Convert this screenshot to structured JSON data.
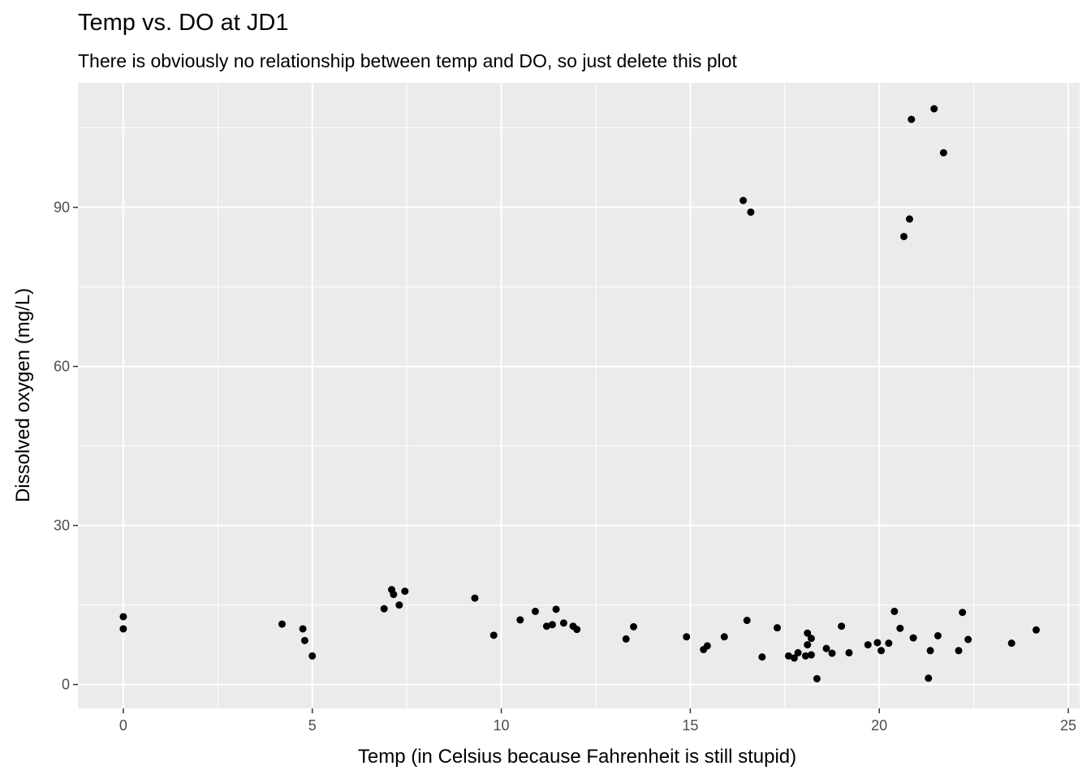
{
  "chart_data": {
    "type": "scatter",
    "title": "Temp vs. DO at JD1",
    "subtitle": "There is obviously no relationship between temp and DO, so just delete this plot",
    "xlabel": "Temp (in Celsius because Fahrenheit is still stupid)",
    "ylabel": "Dissolved oxygen (mg/L)",
    "xlim": [
      -1.2,
      25.3
    ],
    "ylim": [
      -4.5,
      113.5
    ],
    "x_ticks": [
      0,
      5,
      10,
      15,
      20,
      25
    ],
    "y_ticks": [
      0,
      30,
      60,
      90
    ],
    "grid": true,
    "background": "#ebebeb",
    "point_color": "#000000",
    "points": [
      {
        "x": 0.0,
        "y": 12.8
      },
      {
        "x": 0.0,
        "y": 10.5
      },
      {
        "x": 4.2,
        "y": 11.4
      },
      {
        "x": 4.75,
        "y": 10.5
      },
      {
        "x": 4.8,
        "y": 8.3
      },
      {
        "x": 5.0,
        "y": 5.4
      },
      {
        "x": 6.9,
        "y": 14.3
      },
      {
        "x": 7.1,
        "y": 17.9
      },
      {
        "x": 7.15,
        "y": 17.0
      },
      {
        "x": 7.3,
        "y": 15.0
      },
      {
        "x": 7.45,
        "y": 17.6
      },
      {
        "x": 9.3,
        "y": 16.3
      },
      {
        "x": 9.8,
        "y": 9.3
      },
      {
        "x": 10.5,
        "y": 12.2
      },
      {
        "x": 10.9,
        "y": 13.8
      },
      {
        "x": 11.2,
        "y": 11.0
      },
      {
        "x": 11.35,
        "y": 11.3
      },
      {
        "x": 11.45,
        "y": 14.2
      },
      {
        "x": 11.65,
        "y": 11.6
      },
      {
        "x": 11.9,
        "y": 11.0
      },
      {
        "x": 12.0,
        "y": 10.4
      },
      {
        "x": 13.3,
        "y": 8.6
      },
      {
        "x": 13.5,
        "y": 10.9
      },
      {
        "x": 14.9,
        "y": 9.0
      },
      {
        "x": 15.35,
        "y": 6.6
      },
      {
        "x": 15.45,
        "y": 7.3
      },
      {
        "x": 15.9,
        "y": 9.0
      },
      {
        "x": 16.4,
        "y": 91.3
      },
      {
        "x": 16.5,
        "y": 12.1
      },
      {
        "x": 16.6,
        "y": 89.1
      },
      {
        "x": 16.9,
        "y": 5.2
      },
      {
        "x": 17.3,
        "y": 10.7
      },
      {
        "x": 17.6,
        "y": 5.4
      },
      {
        "x": 17.75,
        "y": 5.0
      },
      {
        "x": 17.85,
        "y": 6.0
      },
      {
        "x": 18.05,
        "y": 5.4
      },
      {
        "x": 18.1,
        "y": 9.7
      },
      {
        "x": 18.1,
        "y": 7.5
      },
      {
        "x": 18.2,
        "y": 5.6
      },
      {
        "x": 18.2,
        "y": 8.7
      },
      {
        "x": 18.35,
        "y": 1.1
      },
      {
        "x": 18.6,
        "y": 6.8
      },
      {
        "x": 18.75,
        "y": 5.9
      },
      {
        "x": 19.0,
        "y": 11.0
      },
      {
        "x": 19.2,
        "y": 6.0
      },
      {
        "x": 19.7,
        "y": 7.5
      },
      {
        "x": 19.95,
        "y": 7.9
      },
      {
        "x": 20.05,
        "y": 6.4
      },
      {
        "x": 20.25,
        "y": 7.8
      },
      {
        "x": 20.4,
        "y": 13.8
      },
      {
        "x": 20.55,
        "y": 10.6
      },
      {
        "x": 20.65,
        "y": 84.5
      },
      {
        "x": 20.8,
        "y": 87.8
      },
      {
        "x": 20.85,
        "y": 106.6
      },
      {
        "x": 20.9,
        "y": 8.8
      },
      {
        "x": 21.3,
        "y": 1.2
      },
      {
        "x": 21.35,
        "y": 6.4
      },
      {
        "x": 21.45,
        "y": 108.6
      },
      {
        "x": 21.55,
        "y": 9.2
      },
      {
        "x": 21.7,
        "y": 100.3
      },
      {
        "x": 22.1,
        "y": 6.4
      },
      {
        "x": 22.2,
        "y": 13.6
      },
      {
        "x": 22.35,
        "y": 8.5
      },
      {
        "x": 23.5,
        "y": 7.8
      },
      {
        "x": 24.15,
        "y": 10.3
      }
    ]
  }
}
